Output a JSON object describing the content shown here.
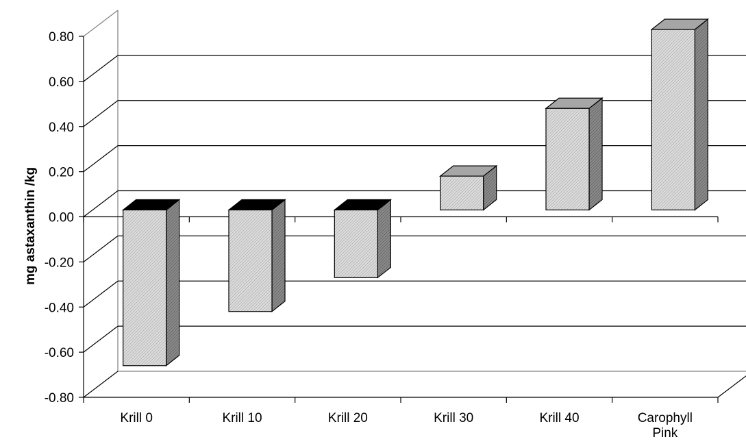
{
  "chart_data": {
    "type": "bar",
    "style": "3d-column",
    "categories": [
      "Krill 0",
      "Krill 10",
      "Krill 20",
      "Krill 30",
      "Krill 40",
      "Carophyll Pink"
    ],
    "values": [
      -0.69,
      -0.45,
      -0.3,
      0.15,
      0.45,
      0.8
    ],
    "title": "",
    "xlabel": "",
    "ylabel": "mg astaxanthin /kg",
    "ylim": [
      -0.8,
      0.8
    ],
    "yticks": [
      "0.80",
      "0.60",
      "0.40",
      "0.20",
      "0.00",
      "-0.20",
      "-0.40",
      "-0.60",
      "-0.80"
    ],
    "grid": true,
    "legend": "none",
    "colors": {
      "bar_fill": "#d2d2d2",
      "bar_side": "#7a7a7a",
      "bar_top_positive": "#a6a6a6",
      "bar_top_negative": "#000000",
      "gridline": "#000000"
    }
  }
}
